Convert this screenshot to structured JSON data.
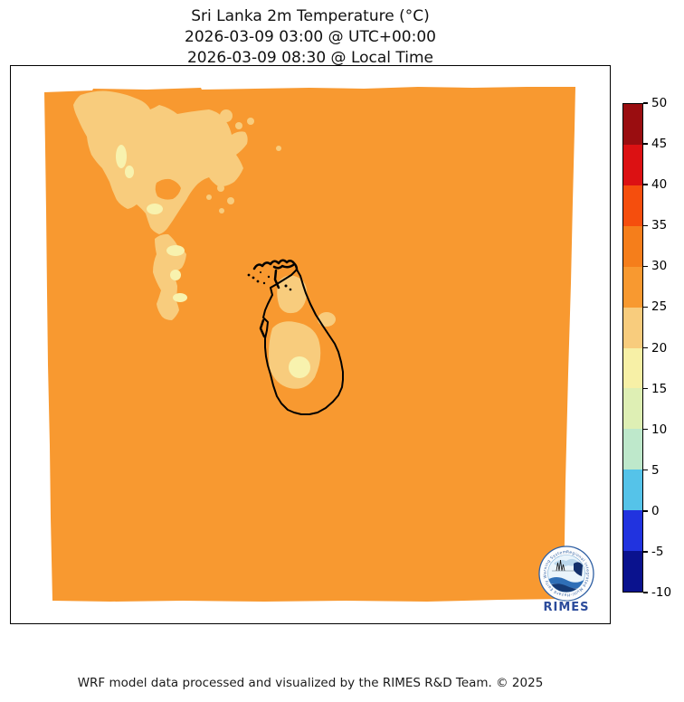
{
  "figure": {
    "title_line1": "Sri Lanka 2m Temperature (°C)",
    "title_line2": "2026-03-09 03:00 @ UTC+00:00",
    "title_line3": "2026-03-09 08:30 @ Local Time",
    "footer": "WRF model data processed and visualized by the RIMES R&D Team. © 2025"
  },
  "logo": {
    "wordmark": "RIMES",
    "ring_text": "Regional Integrated Multi-Hazard Early Warning System",
    "ring_color": "#2E5FA3",
    "wordmark_color": "#2B4B9B"
  },
  "chart_data": {
    "type": "heatmap",
    "title": "Sri Lanka 2m Temperature (°C)",
    "valid_time_utc": "2026-03-09 03:00 @ UTC+00:00",
    "valid_time_local": "2026-03-09 08:30 @ Local Time",
    "variable": "2m Temperature",
    "units": "°C",
    "colorbar": {
      "orientation": "vertical",
      "range_min": -10,
      "range_max": 50,
      "tick_step": 5,
      "ticks_top_to_bottom": [
        "50",
        "45",
        "40",
        "35",
        "30",
        "25",
        "20",
        "15",
        "10",
        "5",
        "0",
        "-5",
        "-10"
      ],
      "segment_colors_top_to_bottom": [
        "#9A0D10",
        "#DC1113",
        "#F54E0D",
        "#F57E1B",
        "#F89930",
        "#F8CC7D",
        "#F7F0A6",
        "#DEEFB4",
        "#BEE8CB",
        "#55C3E9",
        "#2133DF",
        "#0A128E"
      ]
    },
    "field": {
      "domain_fill_band_c": "25-30",
      "domain_fill_color": "#F89930",
      "cooler_patch_band_c": "20-25",
      "cooler_patch_color": "#F8CC7D",
      "coolest_patch_band_c": "15-20",
      "coolest_patch_color": "#F8F2AE",
      "cool_patch_locations": "Southwest Indian highlands (upper-left of domain) and central Sri Lankan highlands",
      "coastline_color": "#000000"
    }
  }
}
